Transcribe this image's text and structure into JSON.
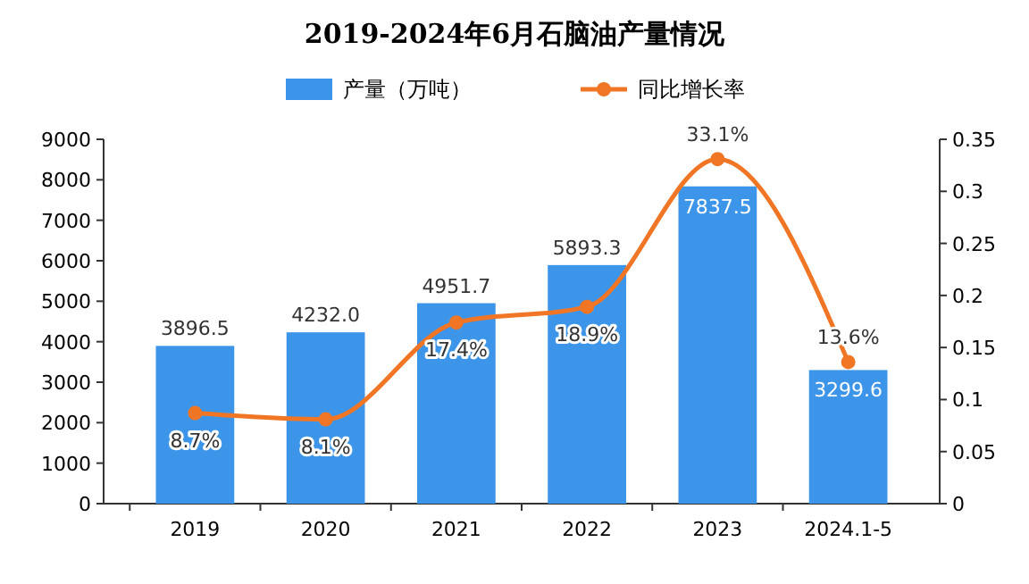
{
  "chart_data": {
    "type": "bar",
    "title": "2019-2024年6月石脑油产量情况",
    "categories": [
      "2019",
      "2020",
      "2021",
      "2022",
      "2023",
      "2024.1-5"
    ],
    "series": [
      {
        "name": "产量（万吨）",
        "color": "#3d95e9",
        "values": [
          3896.5,
          4232.0,
          4951.7,
          5893.3,
          7837.5,
          3299.6
        ],
        "value_labels": [
          "3896.5",
          "4232.0",
          "4951.7",
          "5893.3",
          "7837.5",
          "3299.6"
        ]
      },
      {
        "name": "同比增长率",
        "type": "line",
        "axis": "y2",
        "color": "#f07626",
        "values": [
          0.087,
          0.081,
          0.174,
          0.189,
          0.331,
          0.136
        ],
        "value_labels": [
          "8.7%",
          "8.1%",
          "17.4%",
          "18.9%",
          "33.1%",
          "13.6%"
        ]
      }
    ],
    "ylim": [
      0,
      9000
    ],
    "yticks": [
      0,
      1000,
      2000,
      3000,
      4000,
      5000,
      6000,
      7000,
      8000,
      9000
    ],
    "y2lim": [
      0,
      0.35
    ],
    "y2ticks": [
      0,
      0.05,
      0.1,
      0.15,
      0.2,
      0.25,
      0.3,
      0.35
    ],
    "legend": "top",
    "marker": "circle",
    "grid": false
  }
}
